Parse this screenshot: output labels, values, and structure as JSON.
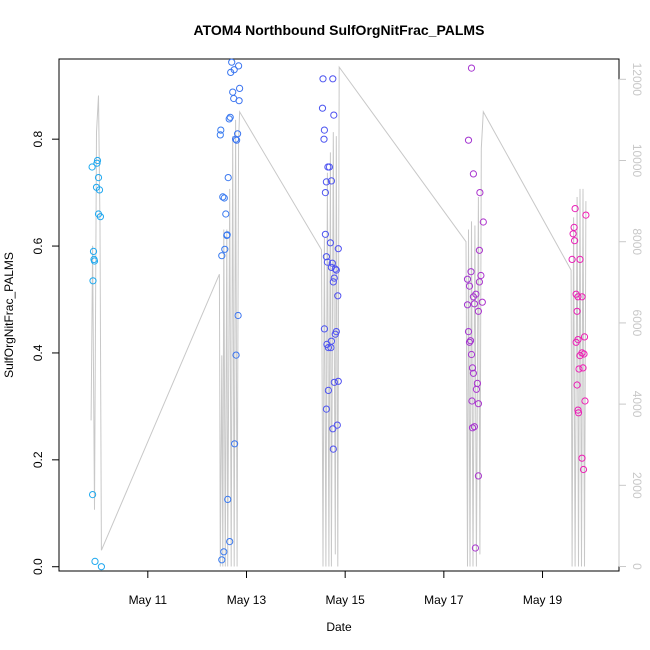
{
  "chart_data": {
    "type": "scatter",
    "title": "ATOM4 Northbound SulfOrgNitFrac_PALMS",
    "xlabel": "Date",
    "ylabel": "SulfOrgNitFrac_PALMS",
    "x_unit": "day of May",
    "xlim": [
      9.2,
      20.55
    ],
    "ylim": [
      -0.008,
      0.95
    ],
    "y2lim": [
      -110,
      12500
    ],
    "x_ticks": [
      {
        "value": 11,
        "label": "May 11"
      },
      {
        "value": 13,
        "label": "May 13"
      },
      {
        "value": 15,
        "label": "May 15"
      },
      {
        "value": 17,
        "label": "May 17"
      },
      {
        "value": 19,
        "label": "May 19"
      }
    ],
    "y_ticks": [
      {
        "value": 0.0,
        "label": "0.0"
      },
      {
        "value": 0.2,
        "label": "0.2"
      },
      {
        "value": 0.4,
        "label": "0.4"
      },
      {
        "value": 0.6,
        "label": "0.6"
      },
      {
        "value": 0.8,
        "label": "0.8"
      }
    ],
    "y2_ticks": [
      {
        "value": 0,
        "label": "0"
      },
      {
        "value": 2000,
        "label": "2000"
      },
      {
        "value": 4000,
        "label": "4000"
      },
      {
        "value": 6000,
        "label": "6000"
      },
      {
        "value": 8000,
        "label": "8000"
      },
      {
        "value": 10000,
        "label": "10000"
      },
      {
        "value": 12000,
        "label": "12000"
      }
    ],
    "grid": false,
    "legend": "none",
    "colors": {
      "point_start": "#1eaaf0",
      "point_mid": "#5050f0",
      "point_end": "#f01eb4",
      "altitude_line": "#c8c8c8"
    },
    "points": [
      [
        9.87,
        0.748
      ],
      [
        9.9,
        0.59
      ],
      [
        9.91,
        0.575
      ],
      [
        9.92,
        0.572
      ],
      [
        9.89,
        0.535
      ],
      [
        9.88,
        0.135
      ],
      [
        9.93,
        0.01
      ],
      [
        9.97,
        0.755
      ],
      [
        9.98,
        0.76
      ],
      [
        9.96,
        0.71
      ],
      [
        10.0,
        0.728
      ],
      [
        10.02,
        0.705
      ],
      [
        10.0,
        0.66
      ],
      [
        10.04,
        0.655
      ],
      [
        10.06,
        0.0
      ],
      [
        12.47,
        0.808
      ],
      [
        12.48,
        0.817
      ],
      [
        12.52,
        0.692
      ],
      [
        12.55,
        0.69
      ],
      [
        12.5,
        0.582
      ],
      [
        12.56,
        0.594
      ],
      [
        12.58,
        0.66
      ],
      [
        12.6,
        0.62
      ],
      [
        12.61,
        0.621
      ],
      [
        12.63,
        0.728
      ],
      [
        12.65,
        0.838
      ],
      [
        12.67,
        0.841
      ],
      [
        12.68,
        0.925
      ],
      [
        12.7,
        0.944
      ],
      [
        12.72,
        0.888
      ],
      [
        12.74,
        0.876
      ],
      [
        12.75,
        0.93
      ],
      [
        12.78,
        0.8
      ],
      [
        12.8,
        0.798
      ],
      [
        12.82,
        0.81
      ],
      [
        12.84,
        0.937
      ],
      [
        12.86,
        0.895
      ],
      [
        12.85,
        0.872
      ],
      [
        12.83,
        0.47
      ],
      [
        12.79,
        0.396
      ],
      [
        12.76,
        0.23
      ],
      [
        12.62,
        0.126
      ],
      [
        12.66,
        0.047
      ],
      [
        12.54,
        0.028
      ],
      [
        12.5,
        0.013
      ],
      [
        14.55,
        0.913
      ],
      [
        14.54,
        0.858
      ],
      [
        14.58,
        0.817
      ],
      [
        14.57,
        0.8
      ],
      [
        14.6,
        0.7
      ],
      [
        14.62,
        0.72
      ],
      [
        14.65,
        0.748
      ],
      [
        14.68,
        0.748
      ],
      [
        14.72,
        0.722
      ],
      [
        14.75,
        0.913
      ],
      [
        14.77,
        0.845
      ],
      [
        14.6,
        0.622
      ],
      [
        14.62,
        0.58
      ],
      [
        14.64,
        0.57
      ],
      [
        14.7,
        0.606
      ],
      [
        14.72,
        0.56
      ],
      [
        14.74,
        0.568
      ],
      [
        14.78,
        0.54
      ],
      [
        14.8,
        0.557
      ],
      [
        14.82,
        0.555
      ],
      [
        14.86,
        0.595
      ],
      [
        14.85,
        0.507
      ],
      [
        14.76,
        0.533
      ],
      [
        14.58,
        0.445
      ],
      [
        14.63,
        0.416
      ],
      [
        14.66,
        0.41
      ],
      [
        14.71,
        0.41
      ],
      [
        14.72,
        0.422
      ],
      [
        14.8,
        0.435
      ],
      [
        14.82,
        0.44
      ],
      [
        14.78,
        0.345
      ],
      [
        14.86,
        0.347
      ],
      [
        14.66,
        0.33
      ],
      [
        14.62,
        0.295
      ],
      [
        14.75,
        0.258
      ],
      [
        14.84,
        0.265
      ],
      [
        14.76,
        0.22
      ],
      [
        17.48,
        0.538
      ],
      [
        17.52,
        0.525
      ],
      [
        17.55,
        0.552
      ],
      [
        17.6,
        0.505
      ],
      [
        17.62,
        0.492
      ],
      [
        17.65,
        0.51
      ],
      [
        17.7,
        0.478
      ],
      [
        17.72,
        0.533
      ],
      [
        17.75,
        0.545
      ],
      [
        17.78,
        0.495
      ],
      [
        17.72,
        0.592
      ],
      [
        17.8,
        0.645
      ],
      [
        17.73,
        0.7
      ],
      [
        17.6,
        0.735
      ],
      [
        17.5,
        0.798
      ],
      [
        17.56,
        0.933
      ],
      [
        17.48,
        0.49
      ],
      [
        17.5,
        0.44
      ],
      [
        17.52,
        0.42
      ],
      [
        17.54,
        0.423
      ],
      [
        17.56,
        0.397
      ],
      [
        17.58,
        0.372
      ],
      [
        17.6,
        0.362
      ],
      [
        17.68,
        0.343
      ],
      [
        17.66,
        0.332
      ],
      [
        17.57,
        0.31
      ],
      [
        17.7,
        0.305
      ],
      [
        17.58,
        0.26
      ],
      [
        17.62,
        0.262
      ],
      [
        17.7,
        0.17
      ],
      [
        17.64,
        0.035
      ],
      [
        19.6,
        0.575
      ],
      [
        19.62,
        0.623
      ],
      [
        19.64,
        0.635
      ],
      [
        19.66,
        0.67
      ],
      [
        19.65,
        0.61
      ],
      [
        19.68,
        0.51
      ],
      [
        19.72,
        0.505
      ],
      [
        19.8,
        0.505
      ],
      [
        19.76,
        0.575
      ],
      [
        19.88,
        0.658
      ],
      [
        19.7,
        0.478
      ],
      [
        19.72,
        0.425
      ],
      [
        19.68,
        0.42
      ],
      [
        19.76,
        0.395
      ],
      [
        19.8,
        0.4
      ],
      [
        19.84,
        0.398
      ],
      [
        19.85,
        0.43
      ],
      [
        19.74,
        0.37
      ],
      [
        19.82,
        0.372
      ],
      [
        19.7,
        0.34
      ],
      [
        19.72,
        0.293
      ],
      [
        19.73,
        0.288
      ],
      [
        19.86,
        0.31
      ],
      [
        19.8,
        0.203
      ],
      [
        19.83,
        0.182
      ]
    ],
    "altitude_ft": [
      [
        9.85,
        3600
      ],
      [
        9.88,
        7900
      ],
      [
        9.92,
        1400
      ],
      [
        9.96,
        10700
      ],
      [
        10.0,
        11600
      ],
      [
        10.03,
        8400
      ],
      [
        10.06,
        400
      ],
      [
        12.45,
        7200
      ],
      [
        12.47,
        0
      ],
      [
        12.5,
        5200
      ],
      [
        12.52,
        0
      ],
      [
        12.54,
        8300
      ],
      [
        12.57,
        0
      ],
      [
        12.6,
        8300
      ],
      [
        12.62,
        0
      ],
      [
        12.66,
        9300
      ],
      [
        12.69,
        0
      ],
      [
        12.72,
        10600
      ],
      [
        12.75,
        0
      ],
      [
        12.78,
        11000
      ],
      [
        12.81,
        0
      ],
      [
        12.84,
        10500
      ],
      [
        12.86,
        11200
      ],
      [
        14.52,
        7800
      ],
      [
        14.55,
        0
      ],
      [
        14.58,
        8100
      ],
      [
        14.61,
        0
      ],
      [
        14.64,
        9700
      ],
      [
        14.67,
        0
      ],
      [
        14.7,
        10200
      ],
      [
        14.72,
        0
      ],
      [
        14.76,
        10700
      ],
      [
        14.8,
        300
      ],
      [
        14.82,
        10600
      ],
      [
        14.85,
        0
      ],
      [
        14.88,
        12300
      ],
      [
        17.45,
        8000
      ],
      [
        17.48,
        0
      ],
      [
        17.5,
        8300
      ],
      [
        17.53,
        0
      ],
      [
        17.56,
        8500
      ],
      [
        17.59,
        0
      ],
      [
        17.63,
        8400
      ],
      [
        17.66,
        0
      ],
      [
        17.7,
        9100
      ],
      [
        17.73,
        300
      ],
      [
        17.76,
        10300
      ],
      [
        17.8,
        11200
      ],
      [
        19.58,
        7300
      ],
      [
        19.6,
        0
      ],
      [
        19.63,
        8600
      ],
      [
        19.66,
        0
      ],
      [
        19.7,
        9100
      ],
      [
        19.73,
        0
      ],
      [
        19.76,
        9300
      ],
      [
        19.79,
        0
      ],
      [
        19.82,
        9300
      ],
      [
        19.85,
        0
      ],
      [
        19.88,
        9000
      ]
    ]
  }
}
